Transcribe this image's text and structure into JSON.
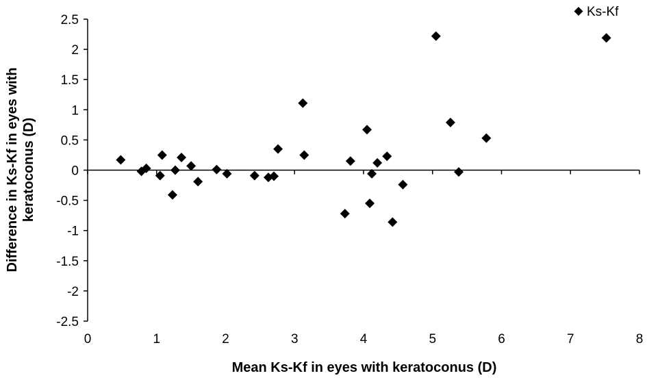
{
  "chart_data": {
    "type": "scatter",
    "title": "",
    "xlabel": "Mean Ks-Kf in eyes with keratoconus (D)",
    "ylabel_lines": [
      "Difference in Ks-Kf in eyes with",
      "keratoconus (D)"
    ],
    "xlim": [
      0,
      8
    ],
    "ylim": [
      -2.5,
      2.5
    ],
    "x_ticks": [
      0,
      1,
      2,
      3,
      4,
      5,
      6,
      7,
      8
    ],
    "y_ticks": [
      2.5,
      2,
      1.5,
      1,
      0.5,
      0,
      -0.5,
      -1,
      -1.5,
      -2,
      -2.5
    ],
    "x_tick_labels": [
      "0",
      "1",
      "2",
      "3",
      "4",
      "5",
      "6",
      "7",
      "8"
    ],
    "y_tick_labels": [
      "2.5",
      "2",
      "1.5",
      "1",
      "0.5",
      "0",
      "-0.5",
      "-1",
      "-1.5",
      "-2",
      "-2.5"
    ],
    "grid": false,
    "legend": {
      "position": "top-right",
      "marker": "diamond",
      "label": "Ks-Kf"
    },
    "marker_color": "#000000",
    "series": [
      {
        "name": "Ks-Kf",
        "marker": "diamond",
        "points": [
          [
            0.48,
            0.17
          ],
          [
            0.78,
            -0.02
          ],
          [
            0.85,
            0.03
          ],
          [
            1.05,
            -0.09
          ],
          [
            1.08,
            0.25
          ],
          [
            1.23,
            -0.41
          ],
          [
            1.27,
            0.0
          ],
          [
            1.36,
            0.21
          ],
          [
            1.5,
            0.07
          ],
          [
            1.6,
            -0.19
          ],
          [
            1.87,
            0.01
          ],
          [
            2.02,
            -0.06
          ],
          [
            2.42,
            -0.09
          ],
          [
            2.62,
            -0.12
          ],
          [
            2.7,
            -0.1
          ],
          [
            2.76,
            0.35
          ],
          [
            3.12,
            1.11
          ],
          [
            3.14,
            0.25
          ],
          [
            3.73,
            -0.72
          ],
          [
            3.81,
            0.15
          ],
          [
            4.05,
            0.67
          ],
          [
            4.09,
            -0.55
          ],
          [
            4.12,
            -0.06
          ],
          [
            4.2,
            0.12
          ],
          [
            4.34,
            0.23
          ],
          [
            4.42,
            -0.86
          ],
          [
            4.57,
            -0.24
          ],
          [
            5.05,
            2.22
          ],
          [
            5.26,
            0.79
          ],
          [
            5.38,
            -0.03
          ],
          [
            5.78,
            0.53
          ],
          [
            7.52,
            2.19
          ]
        ]
      }
    ]
  }
}
